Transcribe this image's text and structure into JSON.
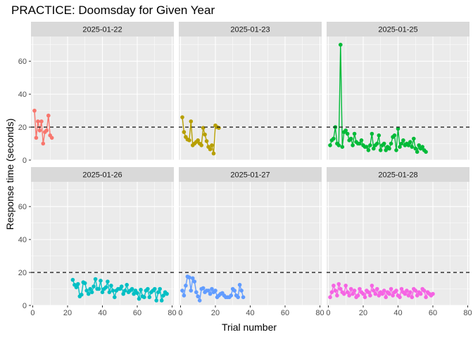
{
  "chart_data": {
    "type": "line",
    "title": "PRACTICE: Doomsday for Given Year",
    "xlabel": "Trial number",
    "ylabel": "Response time (seconds)",
    "xlim": [
      -1,
      81
    ],
    "ylim": [
      0,
      75
    ],
    "x_ticks": [
      0,
      20,
      40,
      60,
      80
    ],
    "y_ticks": [
      0,
      20,
      40,
      60
    ],
    "reference_line": 20,
    "grid": true,
    "facets": [
      {
        "label": "2025-01-22",
        "color": "#F8766D",
        "x": [
          1,
          2,
          3,
          4,
          5,
          6,
          7,
          8,
          9,
          10,
          11
        ],
        "y": [
          30,
          13.5,
          23.5,
          18,
          23.5,
          10,
          17,
          18,
          27,
          15,
          13.5
        ]
      },
      {
        "label": "2025-01-23",
        "color": "#B79F00",
        "x": [
          1,
          2,
          3,
          4,
          5,
          6,
          7,
          8,
          9,
          10,
          11,
          12,
          13,
          14,
          15,
          16,
          17,
          18,
          19,
          20,
          21,
          22
        ],
        "y": [
          26,
          17,
          14,
          12.5,
          12,
          23.5,
          9,
          10,
          11,
          12,
          10,
          9,
          19.5,
          15.5,
          11.5,
          8,
          6.5,
          9,
          4,
          21,
          20,
          19.5
        ]
      },
      {
        "label": "2025-01-25",
        "color": "#00BA38",
        "x": [
          1,
          2,
          3,
          4,
          5,
          6,
          7,
          8,
          9,
          10,
          11,
          12,
          13,
          14,
          15,
          16,
          17,
          18,
          19,
          20,
          21,
          22,
          23,
          24,
          25,
          26,
          27,
          28,
          29,
          30,
          31,
          32,
          33,
          34,
          35,
          36,
          37,
          38,
          39,
          40,
          41,
          42,
          43,
          44,
          45,
          46,
          47,
          48,
          49,
          50,
          51,
          52,
          53,
          54,
          55,
          56
        ],
        "y": [
          9,
          12,
          13,
          20,
          10,
          9,
          70,
          8,
          17,
          18,
          16,
          12,
          13,
          9,
          16,
          11,
          10,
          10,
          12,
          9,
          8,
          8,
          6,
          9,
          16,
          7,
          9,
          10,
          15,
          6,
          9,
          10,
          6,
          8,
          7,
          10,
          14,
          15,
          6,
          19,
          8,
          10,
          12,
          9,
          10,
          9,
          11,
          8,
          13,
          7,
          5,
          9,
          7,
          8,
          6,
          5
        ]
      },
      {
        "label": "2025-01-26",
        "color": "#00BFC4",
        "x": [
          23,
          24,
          25,
          26,
          27,
          28,
          29,
          30,
          31,
          32,
          33,
          34,
          35,
          36,
          37,
          38,
          39,
          40,
          41,
          42,
          43,
          44,
          45,
          46,
          47,
          48,
          49,
          50,
          51,
          52,
          53,
          54,
          55,
          56,
          57,
          58,
          59,
          60,
          61,
          62,
          63,
          64,
          65,
          66,
          67,
          68,
          69,
          70,
          71,
          72,
          73,
          74,
          75,
          76,
          77
        ],
        "y": [
          15.5,
          12.5,
          11,
          13,
          5.5,
          6.5,
          14,
          13.5,
          9,
          7,
          10,
          8,
          11.5,
          16,
          10,
          10,
          15,
          8,
          10,
          11,
          14.5,
          8,
          12,
          9,
          5,
          9,
          10,
          10,
          11.5,
          7,
          9,
          12.5,
          8,
          9,
          10,
          7,
          9,
          7.5,
          4,
          9.5,
          5.5,
          5,
          9,
          10,
          5,
          8,
          9,
          10,
          3,
          8,
          10,
          3,
          6,
          8,
          7
        ]
      },
      {
        "label": "2025-01-27",
        "color": "#619CFF",
        "x": [
          1,
          2,
          3,
          4,
          5,
          6,
          7,
          8,
          9,
          10,
          11,
          12,
          13,
          14,
          15,
          16,
          17,
          18,
          19,
          20,
          21,
          22,
          23,
          24,
          25,
          26,
          27,
          28,
          29,
          30,
          31,
          32,
          33,
          34,
          35,
          36
        ],
        "y": [
          9,
          6,
          12,
          17.5,
          17,
          9,
          16.5,
          14.5,
          8,
          5.5,
          3,
          10,
          10.5,
          8,
          9,
          9,
          7,
          10,
          8,
          9,
          5,
          6,
          7,
          7.5,
          6,
          5,
          5,
          5,
          6,
          10,
          9,
          6,
          5,
          12.5,
          9,
          5
        ]
      },
      {
        "label": "2025-01-28",
        "color": "#F564E3",
        "x": [
          1,
          2,
          3,
          4,
          5,
          6,
          7,
          8,
          9,
          10,
          11,
          12,
          13,
          14,
          15,
          16,
          17,
          18,
          19,
          20,
          21,
          22,
          23,
          24,
          25,
          26,
          27,
          28,
          29,
          30,
          31,
          32,
          33,
          34,
          35,
          36,
          37,
          38,
          39,
          40,
          41,
          42,
          43,
          44,
          45,
          46,
          47,
          48,
          49,
          50,
          51,
          52,
          53,
          54,
          55,
          56,
          57,
          58,
          59,
          60
        ],
        "y": [
          5,
          8,
          12,
          9,
          6,
          13,
          10,
          8,
          7,
          12,
          8,
          6,
          10,
          7,
          9,
          5,
          6,
          10,
          8,
          7,
          5,
          9,
          8,
          6,
          12,
          9,
          7,
          10,
          6,
          8,
          7,
          9,
          5,
          8,
          7,
          10,
          6,
          8,
          9,
          6,
          5,
          10,
          8,
          7,
          9,
          6,
          8,
          5,
          10,
          9,
          6,
          8,
          7,
          10,
          9,
          5,
          8,
          7,
          6,
          7
        ]
      }
    ]
  }
}
